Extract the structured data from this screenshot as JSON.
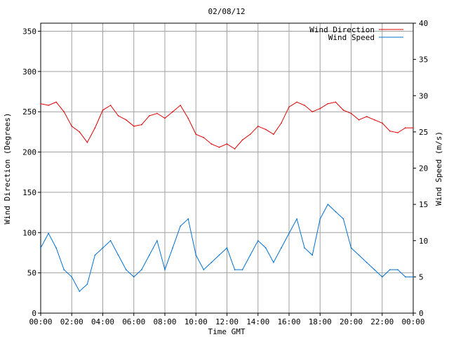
{
  "chart_data": {
    "type": "line",
    "title": "02/08/12",
    "xlabel": "Time GMT",
    "ylabel_left": "Wind Direction (Degrees)",
    "ylabel_right": "Wind Speed (m/s)",
    "x_ticks": [
      "00:00",
      "02:00",
      "04:00",
      "06:00",
      "08:00",
      "10:00",
      "12:00",
      "14:00",
      "16:00",
      "18:00",
      "20:00",
      "22:00",
      "00:00"
    ],
    "x_range_hours": [
      0,
      24
    ],
    "ylim_left": [
      0,
      360
    ],
    "yticks_left": [
      "0",
      "50",
      "100",
      "150",
      "200",
      "250",
      "300",
      "350"
    ],
    "ylim_right": [
      0,
      40
    ],
    "yticks_right": [
      "0",
      "5",
      "10",
      "15",
      "20",
      "25",
      "30",
      "35",
      "40"
    ],
    "grid": true,
    "legend_position": "top-right",
    "series": [
      {
        "name": "Wind Direction",
        "axis": "left",
        "color": "#e00000",
        "x_hours": [
          0,
          0.5,
          1,
          1.5,
          2,
          2.5,
          3,
          3.5,
          4,
          4.5,
          5,
          5.5,
          6,
          6.5,
          7,
          7.5,
          8,
          8.5,
          9,
          9.5,
          10,
          10.5,
          11,
          11.5,
          12,
          12.5,
          13,
          13.5,
          14,
          14.5,
          15,
          15.5,
          16,
          16.5,
          17,
          17.5,
          18,
          18.5,
          19,
          19.5,
          20,
          20.5,
          21,
          21.5,
          22,
          22.5,
          23,
          23.5,
          24
        ],
        "values": [
          260,
          258,
          262,
          250,
          232,
          225,
          212,
          230,
          252,
          258,
          245,
          240,
          232,
          234,
          245,
          248,
          242,
          250,
          258,
          242,
          222,
          218,
          210,
          206,
          210,
          204,
          215,
          222,
          232,
          228,
          222,
          236,
          256,
          262,
          258,
          250,
          254,
          260,
          262,
          252,
          248,
          240,
          244,
          240,
          236,
          226,
          224,
          230,
          230
        ]
      },
      {
        "name": "Wind Speed",
        "axis": "right",
        "color": "#0070d0",
        "x_hours": [
          0,
          0.5,
          1,
          1.5,
          2,
          2.5,
          3,
          3.5,
          4,
          4.5,
          5,
          5.5,
          6,
          6.5,
          7,
          7.5,
          8,
          8.5,
          9,
          9.5,
          10,
          10.5,
          11,
          11.5,
          12,
          12.5,
          13,
          13.5,
          14,
          14.5,
          15,
          15.5,
          16,
          16.5,
          17,
          17.5,
          18,
          18.5,
          19,
          19.5,
          20,
          20.5,
          21,
          21.5,
          22,
          22.5,
          23,
          23.5,
          24
        ],
        "values": [
          9,
          11,
          9,
          6,
          5,
          3,
          4,
          8,
          9,
          10,
          8,
          6,
          5,
          6,
          8,
          10,
          6,
          9,
          12,
          13,
          8,
          6,
          7,
          8,
          9,
          6,
          6,
          8,
          10,
          9,
          7,
          9,
          11,
          13,
          9,
          8,
          13,
          15,
          14,
          13,
          9,
          8,
          7,
          6,
          5,
          6,
          6,
          5,
          5
        ]
      }
    ]
  }
}
